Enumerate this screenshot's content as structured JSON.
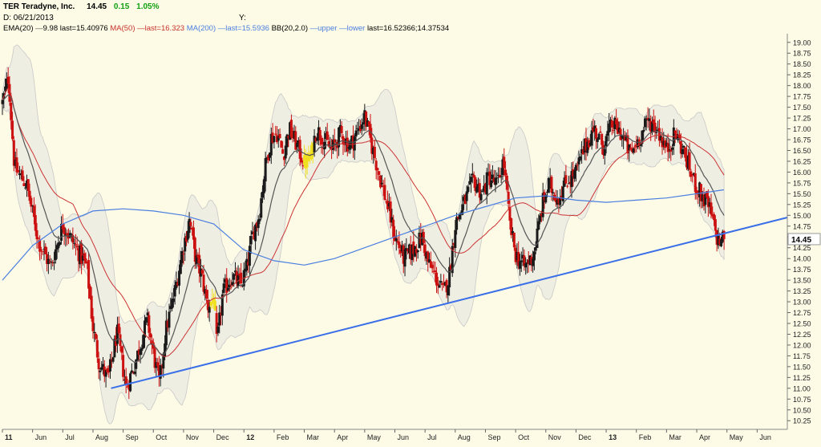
{
  "header": {
    "ticker_name": "TER Teradyne, Inc.",
    "last_price": "14.45",
    "change": "0.15",
    "change_pct": "1.05%",
    "date_label": "D: 06/21/2013",
    "y_label": "Y:",
    "ema": {
      "label": "EMA(20)",
      "value": "9.98 last=15.40976"
    },
    "ma50": {
      "label": "MA(50)",
      "value": "last=16.323"
    },
    "ma200": {
      "label": "MA(200)",
      "value": "last=15.5936"
    },
    "bb": {
      "label": "BB(20,2.0)",
      "upper": "upper",
      "lower": "lower",
      "value": "last=16.52366;14.37534"
    }
  },
  "price_tag": "14.45",
  "colors": {
    "background": "#fdfbe6",
    "up_candle": "#1a1a1a",
    "down_candle": "#cc1111",
    "highlight_candle": "#f0e020",
    "ema": "#555555",
    "ma50": "#cc3333",
    "ma200": "#4a7fe0",
    "bollinger_band": "#c8c8c8",
    "trendline": "#3a6fe8"
  },
  "chart_data": {
    "type": "candlestick",
    "title": "TER Teradyne, Inc.",
    "x_axis": {
      "tick_labels": [
        "11",
        "Jun",
        "Jul",
        "Aug",
        "Sep",
        "Oct",
        "Nov",
        "Dec",
        "12",
        "Feb",
        "Mar",
        "Apr",
        "May",
        "Jun",
        "Jul",
        "Aug",
        "Sep",
        "Oct",
        "Nov",
        "Dec",
        "13",
        "Feb",
        "Mar",
        "Apr",
        "May",
        "Jun"
      ],
      "tick_months": [
        0,
        1,
        2,
        3,
        4,
        5,
        6,
        7,
        8,
        9,
        10,
        11,
        12,
        13,
        14,
        15,
        16,
        17,
        18,
        19,
        20,
        21,
        22,
        23,
        24,
        25
      ],
      "range_months": [
        0,
        26
      ]
    },
    "y_axis": {
      "range": [
        10.05,
        19.2
      ],
      "ticks": [
        "10.25",
        "10.50",
        "10.75",
        "11.00",
        "11.25",
        "11.50",
        "11.75",
        "12.00",
        "12.25",
        "12.50",
        "12.75",
        "13.00",
        "13.25",
        "13.50",
        "13.75",
        "14.00",
        "14.25",
        "14.50",
        "14.75",
        "15.00",
        "15.25",
        "15.50",
        "15.75",
        "16.00",
        "16.25",
        "16.50",
        "16.75",
        "17.00",
        "17.25",
        "17.50",
        "17.75",
        "18.00",
        "18.25",
        "18.50",
        "18.75",
        "19.00"
      ],
      "position": "right"
    },
    "price_path": [
      [
        0.0,
        17.6
      ],
      [
        0.2,
        18.2
      ],
      [
        0.4,
        16.1
      ],
      [
        0.8,
        15.7
      ],
      [
        1.2,
        14.4
      ],
      [
        1.6,
        13.8
      ],
      [
        2.0,
        14.8
      ],
      [
        2.4,
        14.3
      ],
      [
        2.8,
        13.8
      ],
      [
        3.0,
        12.4
      ],
      [
        3.2,
        11.6
      ],
      [
        3.5,
        11.2
      ],
      [
        3.8,
        12.3
      ],
      [
        4.1,
        11.0
      ],
      [
        4.4,
        11.6
      ],
      [
        4.8,
        12.6
      ],
      [
        5.0,
        11.8
      ],
      [
        5.2,
        11.1
      ],
      [
        5.4,
        12.3
      ],
      [
        5.7,
        13.2
      ],
      [
        6.0,
        14.3
      ],
      [
        6.2,
        14.9
      ],
      [
        6.4,
        14.0
      ],
      [
        6.6,
        13.6
      ],
      [
        6.8,
        12.9
      ],
      [
        7.0,
        13.1
      ],
      [
        7.1,
        12.0
      ],
      [
        7.3,
        13.2
      ],
      [
        7.6,
        13.6
      ],
      [
        7.9,
        13.4
      ],
      [
        8.1,
        13.8
      ],
      [
        8.3,
        14.6
      ],
      [
        8.5,
        15.0
      ],
      [
        8.7,
        16.1
      ],
      [
        8.9,
        16.8
      ],
      [
        9.1,
        16.9
      ],
      [
        9.3,
        16.4
      ],
      [
        9.5,
        17.0
      ],
      [
        9.7,
        16.7
      ],
      [
        10.0,
        16.2
      ],
      [
        10.2,
        16.3
      ],
      [
        10.4,
        17.0
      ],
      [
        10.6,
        16.8
      ],
      [
        10.9,
        16.5
      ],
      [
        11.2,
        16.9
      ],
      [
        11.5,
        16.6
      ],
      [
        11.8,
        17.0
      ],
      [
        12.0,
        17.3
      ],
      [
        12.2,
        16.7
      ],
      [
        12.5,
        15.9
      ],
      [
        12.8,
        15.1
      ],
      [
        13.0,
        14.5
      ],
      [
        13.3,
        14.0
      ],
      [
        13.6,
        14.2
      ],
      [
        13.9,
        14.5
      ],
      [
        14.1,
        13.9
      ],
      [
        14.4,
        13.5
      ],
      [
        14.6,
        13.2
      ],
      [
        14.8,
        13.6
      ],
      [
        15.0,
        14.8
      ],
      [
        15.3,
        15.3
      ],
      [
        15.6,
        15.8
      ],
      [
        15.9,
        15.5
      ],
      [
        16.1,
        15.9
      ],
      [
        16.4,
        15.7
      ],
      [
        16.6,
        16.3
      ],
      [
        16.8,
        14.8
      ],
      [
        17.0,
        14.1
      ],
      [
        17.3,
        13.8
      ],
      [
        17.6,
        14.1
      ],
      [
        17.9,
        15.3
      ],
      [
        18.1,
        15.7
      ],
      [
        18.4,
        15.4
      ],
      [
        18.7,
        15.8
      ],
      [
        19.0,
        16.0
      ],
      [
        19.3,
        16.6
      ],
      [
        19.6,
        17.0
      ],
      [
        19.9,
        16.6
      ],
      [
        20.2,
        17.1
      ],
      [
        20.5,
        16.9
      ],
      [
        20.8,
        16.4
      ],
      [
        21.1,
        16.8
      ],
      [
        21.4,
        17.2
      ],
      [
        21.7,
        17.0
      ],
      [
        22.0,
        16.5
      ],
      [
        22.3,
        16.9
      ],
      [
        22.6,
        16.4
      ],
      [
        22.9,
        15.8
      ],
      [
        23.2,
        15.4
      ],
      [
        23.4,
        15.2
      ],
      [
        23.7,
        14.4
      ],
      [
        23.9,
        14.45
      ]
    ],
    "highlight_months": [
      [
        10.0,
        10.3
      ],
      [
        6.9,
        7.05
      ]
    ],
    "ma200_path": [
      [
        0,
        13.5
      ],
      [
        1,
        14.3
      ],
      [
        2,
        14.8
      ],
      [
        3,
        15.1
      ],
      [
        4,
        15.15
      ],
      [
        5,
        15.1
      ],
      [
        6,
        15.0
      ],
      [
        7,
        14.8
      ],
      [
        8,
        14.2
      ],
      [
        9,
        13.95
      ],
      [
        10,
        13.85
      ],
      [
        11,
        14.0
      ],
      [
        12,
        14.25
      ],
      [
        13,
        14.5
      ],
      [
        14,
        14.75
      ],
      [
        15,
        15.0
      ],
      [
        16,
        15.2
      ],
      [
        17,
        15.4
      ],
      [
        18,
        15.45
      ],
      [
        19,
        15.35
      ],
      [
        20,
        15.3
      ],
      [
        21,
        15.35
      ],
      [
        22,
        15.4
      ],
      [
        23,
        15.5
      ],
      [
        23.9,
        15.59
      ]
    ],
    "trendline": {
      "from": [
        3.6,
        11.0
      ],
      "to": [
        26.0,
        14.95
      ]
    },
    "last_values": {
      "close": 14.45,
      "ema20": 15.40976,
      "ma50": 16.323,
      "ma200": 15.5936,
      "bb_upper": 16.52366,
      "bb_lower": 14.37534
    }
  }
}
